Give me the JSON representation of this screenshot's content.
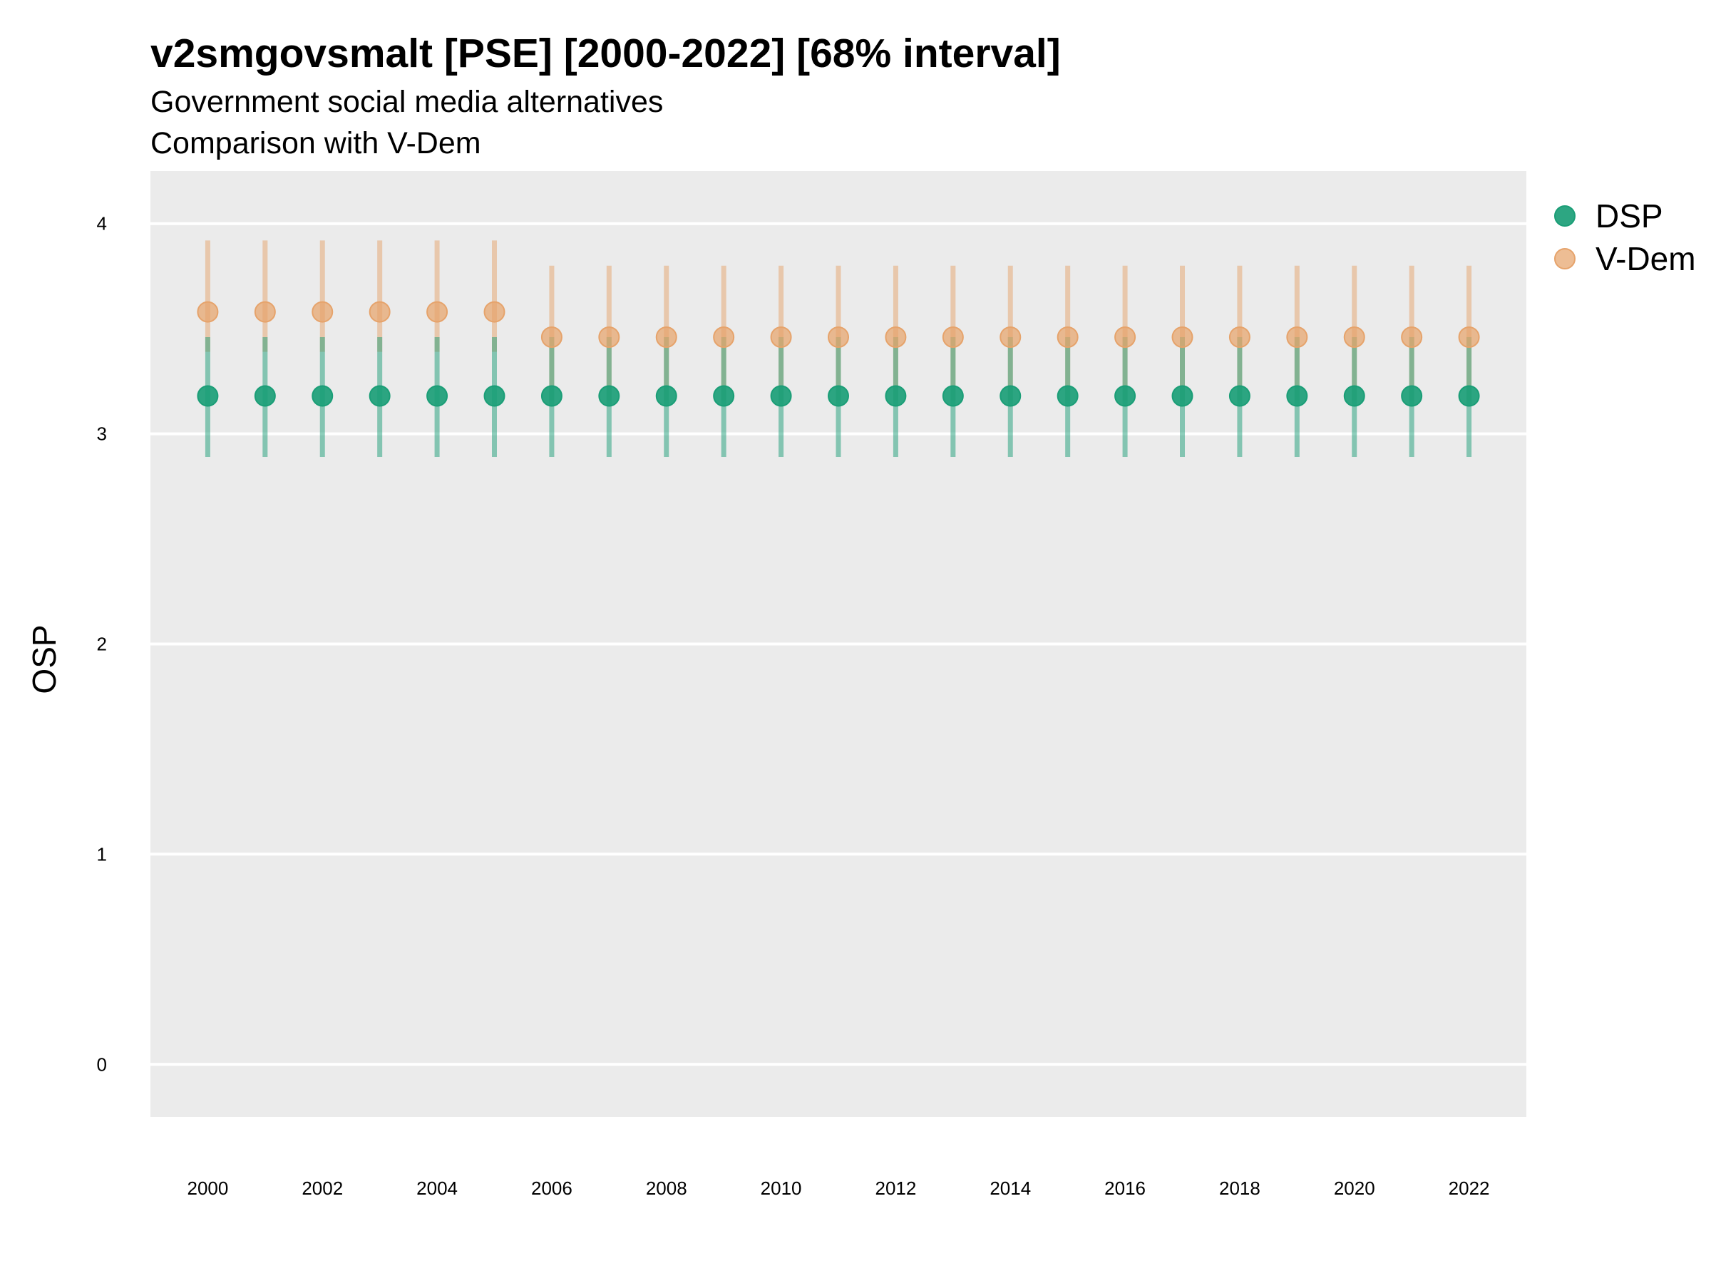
{
  "chart_data": {
    "type": "scatter",
    "title": "v2smgovsmalt [PSE] [2000-2022] [68% interval]",
    "subtitle": "Government social media alternatives",
    "subtitle2": "Comparison with V-Dem",
    "ylabel": "OSP",
    "xlabel": "",
    "ylim": [
      -0.25,
      4.25
    ],
    "xlim": [
      1999,
      2023
    ],
    "y_ticks": [
      "0",
      "1",
      "2",
      "3",
      "4"
    ],
    "x_ticks": [
      "2000",
      "2002",
      "2004",
      "2006",
      "2008",
      "2010",
      "2012",
      "2014",
      "2016",
      "2018",
      "2020",
      "2022"
    ],
    "x": [
      2000,
      2001,
      2002,
      2003,
      2004,
      2005,
      2006,
      2007,
      2008,
      2009,
      2010,
      2011,
      2012,
      2013,
      2014,
      2015,
      2016,
      2017,
      2018,
      2019,
      2020,
      2021,
      2022
    ],
    "grid": true,
    "legend_position": "right",
    "series": [
      {
        "name": "DSP",
        "color": "#1b9e77",
        "values": [
          3.18,
          3.18,
          3.18,
          3.18,
          3.18,
          3.18,
          3.18,
          3.18,
          3.18,
          3.18,
          3.18,
          3.18,
          3.18,
          3.18,
          3.18,
          3.18,
          3.18,
          3.18,
          3.18,
          3.18,
          3.18,
          3.18,
          3.18
        ],
        "lower": [
          2.89,
          2.89,
          2.89,
          2.89,
          2.89,
          2.89,
          2.89,
          2.89,
          2.89,
          2.89,
          2.89,
          2.89,
          2.89,
          2.89,
          2.89,
          2.89,
          2.89,
          2.89,
          2.89,
          2.89,
          2.89,
          2.89,
          2.89
        ],
        "upper": [
          3.46,
          3.46,
          3.46,
          3.46,
          3.46,
          3.46,
          3.46,
          3.46,
          3.46,
          3.46,
          3.46,
          3.46,
          3.46,
          3.46,
          3.46,
          3.46,
          3.46,
          3.46,
          3.46,
          3.46,
          3.46,
          3.46,
          3.46
        ]
      },
      {
        "name": "V-Dem",
        "color": "#e6a36b",
        "values": [
          3.58,
          3.58,
          3.58,
          3.58,
          3.58,
          3.58,
          3.46,
          3.46,
          3.46,
          3.46,
          3.46,
          3.46,
          3.46,
          3.46,
          3.46,
          3.46,
          3.46,
          3.46,
          3.46,
          3.46,
          3.46,
          3.46,
          3.46
        ],
        "lower": [
          3.39,
          3.39,
          3.39,
          3.39,
          3.39,
          3.39,
          3.16,
          3.16,
          3.16,
          3.16,
          3.16,
          3.16,
          3.16,
          3.16,
          3.16,
          3.16,
          3.16,
          3.16,
          3.16,
          3.16,
          3.16,
          3.16,
          3.16
        ],
        "upper": [
          3.92,
          3.92,
          3.92,
          3.92,
          3.92,
          3.92,
          3.8,
          3.8,
          3.8,
          3.8,
          3.8,
          3.8,
          3.8,
          3.8,
          3.8,
          3.8,
          3.8,
          3.8,
          3.8,
          3.8,
          3.8,
          3.8,
          3.8
        ]
      }
    ]
  }
}
